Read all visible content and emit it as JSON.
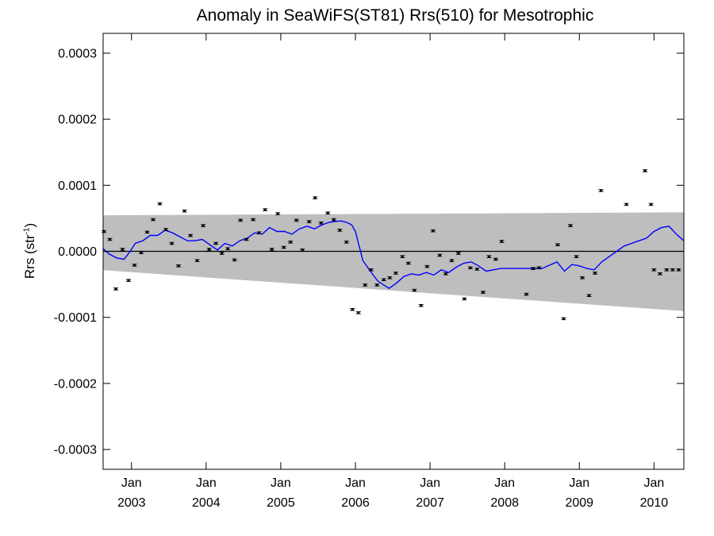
{
  "chart_data": {
    "type": "line",
    "title": "Anomaly in SeaWiFS(ST81) Rrs(510) for Mesotrophic",
    "ylabel_main": "Rrs (str",
    "ylabel_sup": "-1",
    "ylabel_close": ")",
    "xlabel": "",
    "ylim": [
      -0.00033,
      0.00033
    ],
    "xlim": [
      2002.62,
      2010.4
    ],
    "y_ticks": [
      {
        "value": 0.0003,
        "label": "0.0003"
      },
      {
        "value": 0.0002,
        "label": "0.0002"
      },
      {
        "value": 0.0001,
        "label": "0.0001"
      },
      {
        "value": 0.0,
        "label": "0.0000"
      },
      {
        "value": -0.0001,
        "label": "-0.0001"
      },
      {
        "value": -0.0002,
        "label": "-0.0002"
      },
      {
        "value": -0.0003,
        "label": "-0.0003"
      }
    ],
    "x_ticks": [
      {
        "value": 2003.0,
        "month": "Jan",
        "year": "2003"
      },
      {
        "value": 2004.0,
        "month": "Jan",
        "year": "2004"
      },
      {
        "value": 2005.0,
        "month": "Jan",
        "year": "2005"
      },
      {
        "value": 2006.0,
        "month": "Jan",
        "year": "2006"
      },
      {
        "value": 2007.0,
        "month": "Jan",
        "year": "2007"
      },
      {
        "value": 2008.0,
        "month": "Jan",
        "year": "2008"
      },
      {
        "value": 2009.0,
        "month": "Jan",
        "year": "2009"
      },
      {
        "value": 2010.0,
        "month": "Jan",
        "year": "2010"
      }
    ],
    "band": {
      "x": [
        2002.62,
        2010.4
      ],
      "upper": [
        5.45e-05,
        5.9e-05
      ],
      "lower": [
        -2.85e-05,
        -9.05e-05
      ],
      "color": "#bebebe"
    },
    "zero_line": 0.0,
    "points": {
      "color": "#000000",
      "x": [
        2002.63,
        2002.71,
        2002.79,
        2002.88,
        2002.96,
        2003.04,
        2003.13,
        2003.21,
        2003.29,
        2003.38,
        2003.46,
        2003.54,
        2003.63,
        2003.71,
        2003.79,
        2003.88,
        2003.96,
        2004.04,
        2004.13,
        2004.21,
        2004.29,
        2004.38,
        2004.46,
        2004.54,
        2004.63,
        2004.71,
        2004.79,
        2004.88,
        2004.96,
        2005.04,
        2005.13,
        2005.21,
        2005.29,
        2005.38,
        2005.46,
        2005.54,
        2005.63,
        2005.71,
        2005.79,
        2005.88,
        2005.96,
        2006.04,
        2006.13,
        2006.21,
        2006.29,
        2006.38,
        2006.46,
        2006.54,
        2006.63,
        2006.71,
        2006.79,
        2006.88,
        2006.96,
        2007.04,
        2007.13,
        2007.21,
        2007.29,
        2007.38,
        2007.46,
        2007.54,
        2007.63,
        2007.71,
        2007.79,
        2007.88,
        2007.96,
        2008.29,
        2008.38,
        2008.46,
        2008.71,
        2008.79,
        2008.88,
        2008.96,
        2009.04,
        2009.13,
        2009.21,
        2009.29,
        2009.63,
        2009.88,
        2009.96,
        2010.0,
        2010.08,
        2010.17,
        2010.25,
        2010.33
      ],
      "y": [
        3e-05,
        1.8e-05,
        -5.7e-05,
        3e-06,
        -4.4e-05,
        -2.1e-05,
        -2e-06,
        2.9e-05,
        4.8e-05,
        7.2e-05,
        3.3e-05,
        1.2e-05,
        -2.2e-05,
        6.1e-05,
        2.4e-05,
        -1.4e-05,
        3.9e-05,
        3e-06,
        1.2e-05,
        -3e-06,
        4e-06,
        -1.3e-05,
        4.7e-05,
        1.8e-05,
        4.8e-05,
        2.8e-05,
        6.3e-05,
        3e-06,
        5.7e-05,
        6e-06,
        1.4e-05,
        4.7e-05,
        2e-06,
        4.5e-05,
        8.1e-05,
        4.3e-05,
        5.8e-05,
        4.8e-05,
        3.2e-05,
        1.4e-05,
        -8.8e-05,
        -9.3e-05,
        -5.1e-05,
        -2.8e-05,
        -5.1e-05,
        -4.3e-05,
        -4e-05,
        -3.3e-05,
        -8e-06,
        -1.8e-05,
        -5.9e-05,
        -8.2e-05,
        -2.3e-05,
        3.1e-05,
        -6e-06,
        -3.4e-05,
        -1.4e-05,
        -3e-06,
        -7.2e-05,
        -2.5e-05,
        -2.7e-05,
        -6.2e-05,
        -8e-06,
        -1.2e-05,
        1.5e-05,
        -6.5e-05,
        -2.6e-05,
        -2.5e-05,
        1e-05,
        -0.000102,
        3.9e-05,
        -8e-06,
        -4e-05,
        -6.7e-05,
        -3.3e-05,
        9.2e-05,
        7.1e-05,
        0.000122,
        7.1e-05,
        -2.8e-05,
        -3.4e-05,
        -2.8e-05,
        -2.8e-05,
        -2.8e-05
      ]
    },
    "series": [
      {
        "color": "#0000ff",
        "x": [
          2002.62,
          2002.7,
          2002.8,
          2002.9,
          2002.97,
          2003.05,
          2003.15,
          2003.25,
          2003.35,
          2003.45,
          2003.55,
          2003.65,
          2003.75,
          2003.85,
          2003.95,
          2004.05,
          2004.15,
          2004.25,
          2004.35,
          2004.45,
          2004.55,
          2004.65,
          2004.75,
          2004.85,
          2004.95,
          2005.05,
          2005.15,
          2005.25,
          2005.35,
          2005.45,
          2005.55,
          2005.65,
          2005.72,
          2005.8,
          2005.88,
          2005.95,
          2006.0,
          2006.1,
          2006.2,
          2006.3,
          2006.38,
          2006.45,
          2006.55,
          2006.65,
          2006.75,
          2006.85,
          2006.95,
          2007.05,
          2007.15,
          2007.25,
          2007.35,
          2007.45,
          2007.55,
          2007.65,
          2007.75,
          2007.85,
          2007.95,
          2008.5,
          2008.7,
          2008.8,
          2008.9,
          2009.0,
          2009.1,
          2009.2,
          2009.3,
          2009.4,
          2009.5,
          2009.6,
          2009.7,
          2009.8,
          2009.9,
          2010.0,
          2010.1,
          2010.2,
          2010.3,
          2010.4
        ],
        "y": [
          4e-06,
          -4e-06,
          -1e-05,
          -1.2e-05,
          -2e-06,
          1.2e-05,
          1.6e-05,
          2.4e-05,
          2.4e-05,
          3.2e-05,
          2.8e-05,
          2.2e-05,
          1.6e-05,
          1.6e-05,
          1.8e-05,
          1e-05,
          2e-06,
          1.2e-05,
          8e-06,
          1.6e-05,
          2e-05,
          2.8e-05,
          2.6e-05,
          3.6e-05,
          3e-05,
          3e-05,
          2.6e-05,
          3.4e-05,
          3.8e-05,
          3.4e-05,
          4e-05,
          4.4e-05,
          4.5e-05,
          4.6e-05,
          4.4e-05,
          4e-05,
          3e-05,
          -1.4e-05,
          -3e-05,
          -4.5e-05,
          -5.1e-05,
          -5.6e-05,
          -4.8e-05,
          -3.8e-05,
          -3.4e-05,
          -3.6e-05,
          -3.2e-05,
          -3.6e-05,
          -2.8e-05,
          -3.2e-05,
          -2.4e-05,
          -1.8e-05,
          -1.6e-05,
          -2.2e-05,
          -3e-05,
          -2.8e-05,
          -2.6e-05,
          -2.6e-05,
          -1.6e-05,
          -3e-05,
          -2e-05,
          -2.2e-05,
          -2.6e-05,
          -2.8e-05,
          -1.6e-05,
          -8e-06,
          0.0,
          8e-06,
          1.2e-05,
          1.6e-05,
          2e-05,
          3e-05,
          3.6e-05,
          3.8e-05,
          2.6e-05,
          1.6e-05
        ]
      }
    ]
  }
}
